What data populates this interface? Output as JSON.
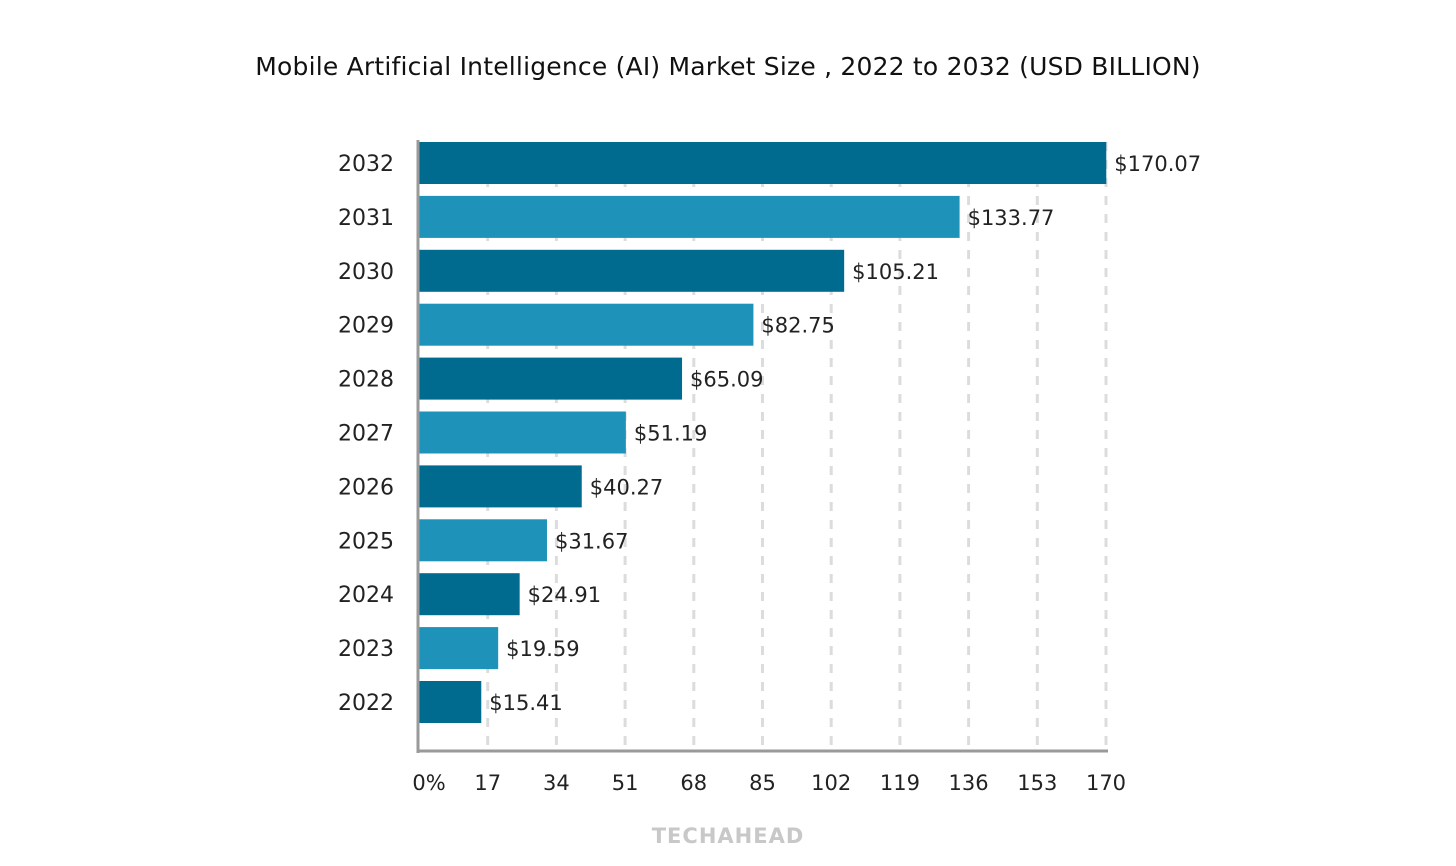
{
  "chart_data": {
    "type": "bar",
    "orientation": "horizontal",
    "title": "Mobile Artificial Intelligence (AI) Market Size , 2022 to 2032 (USD BILLION)",
    "categories": [
      "2032",
      "2031",
      "2030",
      "2029",
      "2028",
      "2027",
      "2026",
      "2025",
      "2024",
      "2023",
      "2022"
    ],
    "values": [
      170.07,
      133.77,
      105.21,
      82.75,
      65.09,
      51.19,
      40.27,
      31.67,
      24.91,
      19.59,
      15.41
    ],
    "value_labels": [
      "$170.07",
      "$133.77",
      "$105.21",
      "$82.75",
      "$65.09",
      "$51.19",
      "$40.27",
      "$31.67",
      "$24.91",
      "$19.59",
      "$15.41"
    ],
    "xticks": [
      0,
      17,
      34,
      51,
      68,
      85,
      102,
      119,
      136,
      153,
      170
    ],
    "xtick_labels": [
      "0%",
      "17",
      "34",
      "51",
      "68",
      "85",
      "102",
      "119",
      "136",
      "153",
      "170"
    ],
    "xlim": [
      0,
      170
    ],
    "xlabel": "",
    "ylabel": "",
    "grid": "vertical dashed",
    "colors": [
      "#006b8f",
      "#1e92b8"
    ]
  },
  "watermark": "TECHAHEAD"
}
